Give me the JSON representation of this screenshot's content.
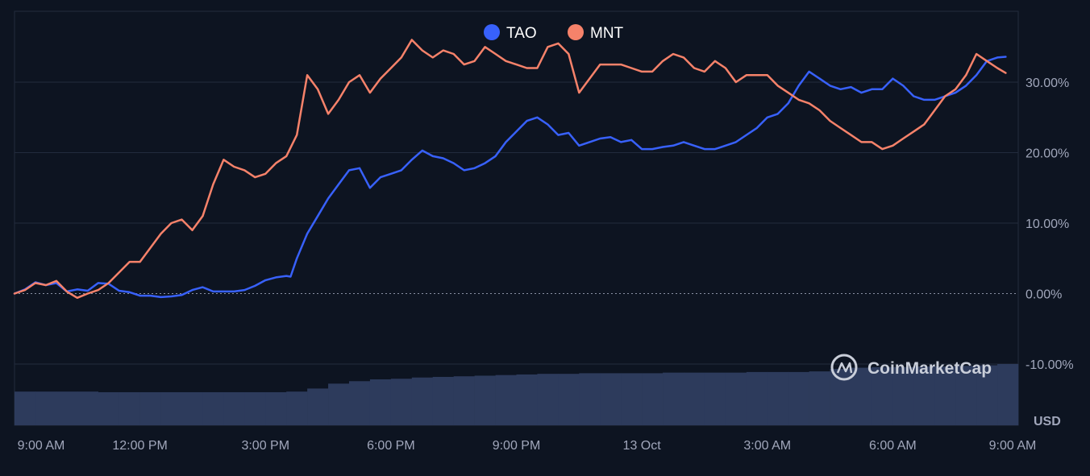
{
  "chart_data": {
    "type": "line",
    "series": [
      {
        "name": "TAO",
        "color": "#3861fb",
        "points": [
          [
            0,
            0
          ],
          [
            0.5,
            0.6
          ],
          [
            1,
            1.6
          ],
          [
            1.5,
            1.2
          ],
          [
            2,
            1.5
          ],
          [
            2.5,
            0.3
          ],
          [
            3,
            0.6
          ],
          [
            3.5,
            0.4
          ],
          [
            4,
            1.5
          ],
          [
            4.5,
            1.4
          ],
          [
            5,
            0.4
          ],
          [
            5.5,
            0.2
          ],
          [
            6,
            -0.3
          ],
          [
            6.5,
            -0.3
          ],
          [
            7,
            -0.5
          ],
          [
            7.5,
            -0.4
          ],
          [
            8,
            -0.2
          ],
          [
            8.5,
            0.5
          ],
          [
            9,
            0.9
          ],
          [
            9.5,
            0.3
          ],
          [
            10,
            0.3
          ],
          [
            10.5,
            0.3
          ],
          [
            11,
            0.5
          ],
          [
            11.5,
            1.1
          ],
          [
            12,
            1.9
          ],
          [
            12.5,
            2.3
          ],
          [
            13,
            2.5
          ],
          [
            13.2,
            2.4
          ],
          [
            13.5,
            5.0
          ],
          [
            14,
            8.5
          ],
          [
            14.5,
            11.0
          ],
          [
            15,
            13.5
          ],
          [
            15.5,
            15.5
          ],
          [
            16,
            17.5
          ],
          [
            16.5,
            17.8
          ],
          [
            17,
            15.0
          ],
          [
            17.5,
            16.5
          ],
          [
            18,
            17.0
          ],
          [
            18.5,
            17.5
          ],
          [
            19,
            19.0
          ],
          [
            19.5,
            20.3
          ],
          [
            20,
            19.5
          ],
          [
            20.5,
            19.2
          ],
          [
            21,
            18.5
          ],
          [
            21.5,
            17.5
          ],
          [
            22,
            17.8
          ],
          [
            22.5,
            18.5
          ],
          [
            23,
            19.5
          ],
          [
            23.5,
            21.5
          ],
          [
            24,
            23.0
          ],
          [
            24.5,
            24.5
          ],
          [
            25,
            25.0
          ],
          [
            25.5,
            24.0
          ],
          [
            26,
            22.5
          ],
          [
            26.5,
            22.8
          ],
          [
            27,
            21.0
          ],
          [
            27.5,
            21.5
          ],
          [
            28,
            22.0
          ],
          [
            28.5,
            22.2
          ],
          [
            29,
            21.5
          ],
          [
            29.5,
            21.8
          ],
          [
            30,
            20.5
          ],
          [
            30.5,
            20.5
          ],
          [
            31,
            20.8
          ],
          [
            31.5,
            21.0
          ],
          [
            32,
            21.5
          ],
          [
            32.5,
            21.0
          ],
          [
            33,
            20.5
          ],
          [
            33.5,
            20.5
          ],
          [
            34,
            21.0
          ],
          [
            34.5,
            21.5
          ],
          [
            35,
            22.5
          ],
          [
            35.5,
            23.5
          ],
          [
            36,
            25.0
          ],
          [
            36.5,
            25.5
          ],
          [
            37,
            27.0
          ],
          [
            37.5,
            29.5
          ],
          [
            38,
            31.5
          ],
          [
            38.5,
            30.5
          ],
          [
            39,
            29.5
          ],
          [
            39.5,
            29.0
          ],
          [
            40,
            29.3
          ],
          [
            40.5,
            28.5
          ],
          [
            41,
            29.0
          ],
          [
            41.5,
            29.0
          ],
          [
            42,
            30.5
          ],
          [
            42.5,
            29.5
          ],
          [
            43,
            28.0
          ],
          [
            43.5,
            27.5
          ],
          [
            44,
            27.5
          ],
          [
            44.5,
            28.0
          ],
          [
            45,
            28.5
          ],
          [
            45.5,
            29.5
          ],
          [
            46,
            31.0
          ],
          [
            46.5,
            33.0
          ],
          [
            47,
            33.5
          ],
          [
            47.4,
            33.6
          ]
        ]
      },
      {
        "name": "MNT",
        "color": "#f6826a",
        "points": [
          [
            0,
            0
          ],
          [
            0.5,
            0.5
          ],
          [
            1,
            1.5
          ],
          [
            1.5,
            1.2
          ],
          [
            2,
            1.8
          ],
          [
            2.5,
            0.3
          ],
          [
            3,
            -0.6
          ],
          [
            3.5,
            0
          ],
          [
            4,
            0.5
          ],
          [
            4.5,
            1.5
          ],
          [
            5,
            3.0
          ],
          [
            5.5,
            4.5
          ],
          [
            6,
            4.5
          ],
          [
            6.5,
            6.5
          ],
          [
            7,
            8.5
          ],
          [
            7.5,
            10.0
          ],
          [
            8,
            10.5
          ],
          [
            8.5,
            9.0
          ],
          [
            9,
            11.0
          ],
          [
            9.5,
            15.5
          ],
          [
            10,
            19.0
          ],
          [
            10.5,
            18.0
          ],
          [
            11,
            17.5
          ],
          [
            11.5,
            16.5
          ],
          [
            12,
            17.0
          ],
          [
            12.5,
            18.5
          ],
          [
            13,
            19.5
          ],
          [
            13.5,
            22.5
          ],
          [
            14,
            31.0
          ],
          [
            14.5,
            29.0
          ],
          [
            15,
            25.5
          ],
          [
            15.5,
            27.5
          ],
          [
            16,
            30.0
          ],
          [
            16.5,
            31.0
          ],
          [
            17,
            28.5
          ],
          [
            17.5,
            30.5
          ],
          [
            18,
            32.0
          ],
          [
            18.5,
            33.5
          ],
          [
            19,
            36.0
          ],
          [
            19.5,
            34.5
          ],
          [
            20,
            33.5
          ],
          [
            20.5,
            34.5
          ],
          [
            21,
            34.0
          ],
          [
            21.5,
            32.5
          ],
          [
            22,
            33.0
          ],
          [
            22.5,
            35.0
          ],
          [
            23,
            34.0
          ],
          [
            23.5,
            33.0
          ],
          [
            24,
            32.5
          ],
          [
            24.5,
            32.0
          ],
          [
            25,
            32.0
          ],
          [
            25.5,
            35.0
          ],
          [
            26,
            35.5
          ],
          [
            26.5,
            34.0
          ],
          [
            27,
            28.5
          ],
          [
            27.5,
            30.5
          ],
          [
            28,
            32.5
          ],
          [
            28.5,
            32.5
          ],
          [
            29,
            32.5
          ],
          [
            29.5,
            32.0
          ],
          [
            30,
            31.5
          ],
          [
            30.5,
            31.5
          ],
          [
            31,
            33.0
          ],
          [
            31.5,
            34.0
          ],
          [
            32,
            33.5
          ],
          [
            32.5,
            32.0
          ],
          [
            33,
            31.5
          ],
          [
            33.5,
            33.0
          ],
          [
            34,
            32.0
          ],
          [
            34.5,
            30.0
          ],
          [
            35,
            31.0
          ],
          [
            35.5,
            31.0
          ],
          [
            36,
            31.0
          ],
          [
            36.5,
            29.5
          ],
          [
            37,
            28.5
          ],
          [
            37.5,
            27.5
          ],
          [
            38,
            27.0
          ],
          [
            38.5,
            26.0
          ],
          [
            39,
            24.5
          ],
          [
            39.5,
            23.5
          ],
          [
            40,
            22.5
          ],
          [
            40.5,
            21.5
          ],
          [
            41,
            21.5
          ],
          [
            41.5,
            20.5
          ],
          [
            42,
            21.0
          ],
          [
            42.5,
            22.0
          ],
          [
            43,
            23.0
          ],
          [
            43.5,
            24.0
          ],
          [
            44,
            26.0
          ],
          [
            44.5,
            28.0
          ],
          [
            45,
            29.0
          ],
          [
            45.5,
            31.0
          ],
          [
            46,
            34.0
          ],
          [
            46.5,
            33.0
          ],
          [
            47,
            32.0
          ],
          [
            47.4,
            31.3
          ]
        ]
      }
    ],
    "x_ticks": [
      {
        "label": "9:00 AM",
        "hour": 0
      },
      {
        "label": "12:00 PM",
        "hour": 6
      },
      {
        "label": "3:00 PM",
        "hour": 12
      },
      {
        "label": "6:00 PM",
        "hour": 18
      },
      {
        "label": "9:00 PM",
        "hour": 24
      },
      {
        "label": "13 Oct",
        "hour": 30
      },
      {
        "label": "3:00 AM",
        "hour": 36
      },
      {
        "label": "6:00 AM",
        "hour": 42
      },
      {
        "label": "9:00 AM",
        "hour": 48
      }
    ],
    "y_ticks": [
      {
        "label": "30.00%",
        "value": 30
      },
      {
        "label": "20.00%",
        "value": 20
      },
      {
        "label": "10.00%",
        "value": 10
      },
      {
        "label": "0.00%",
        "value": 0
      },
      {
        "label": "-10.00%",
        "value": -10
      }
    ],
    "unit_label": "USD",
    "ylim": [
      -10,
      40
    ],
    "xlim_hours": [
      0,
      48
    ],
    "grid": true,
    "volume_bars": {
      "color": "#2d3b5c",
      "levels": [
        0.55,
        0.55,
        0.55,
        0.55,
        0.54,
        0.54,
        0.54,
        0.54,
        0.54,
        0.54,
        0.54,
        0.54,
        0.54,
        0.55,
        0.6,
        0.68,
        0.72,
        0.75,
        0.76,
        0.78,
        0.79,
        0.8,
        0.81,
        0.82,
        0.83,
        0.84,
        0.84,
        0.85,
        0.85,
        0.85,
        0.85,
        0.86,
        0.86,
        0.86,
        0.86,
        0.87,
        0.87,
        0.87,
        0.88,
        0.92,
        0.94,
        0.95,
        0.95,
        0.96,
        0.96,
        0.97,
        0.98,
        1.0
      ]
    }
  },
  "legend": [
    {
      "name": "TAO",
      "color": "#3861fb"
    },
    {
      "name": "MNT",
      "color": "#f6826a"
    }
  ],
  "brand": "CoinMarketCap",
  "colors": {
    "background": "#0d1421",
    "grid": "#222b3d",
    "zero_line": "#8a91a4"
  }
}
